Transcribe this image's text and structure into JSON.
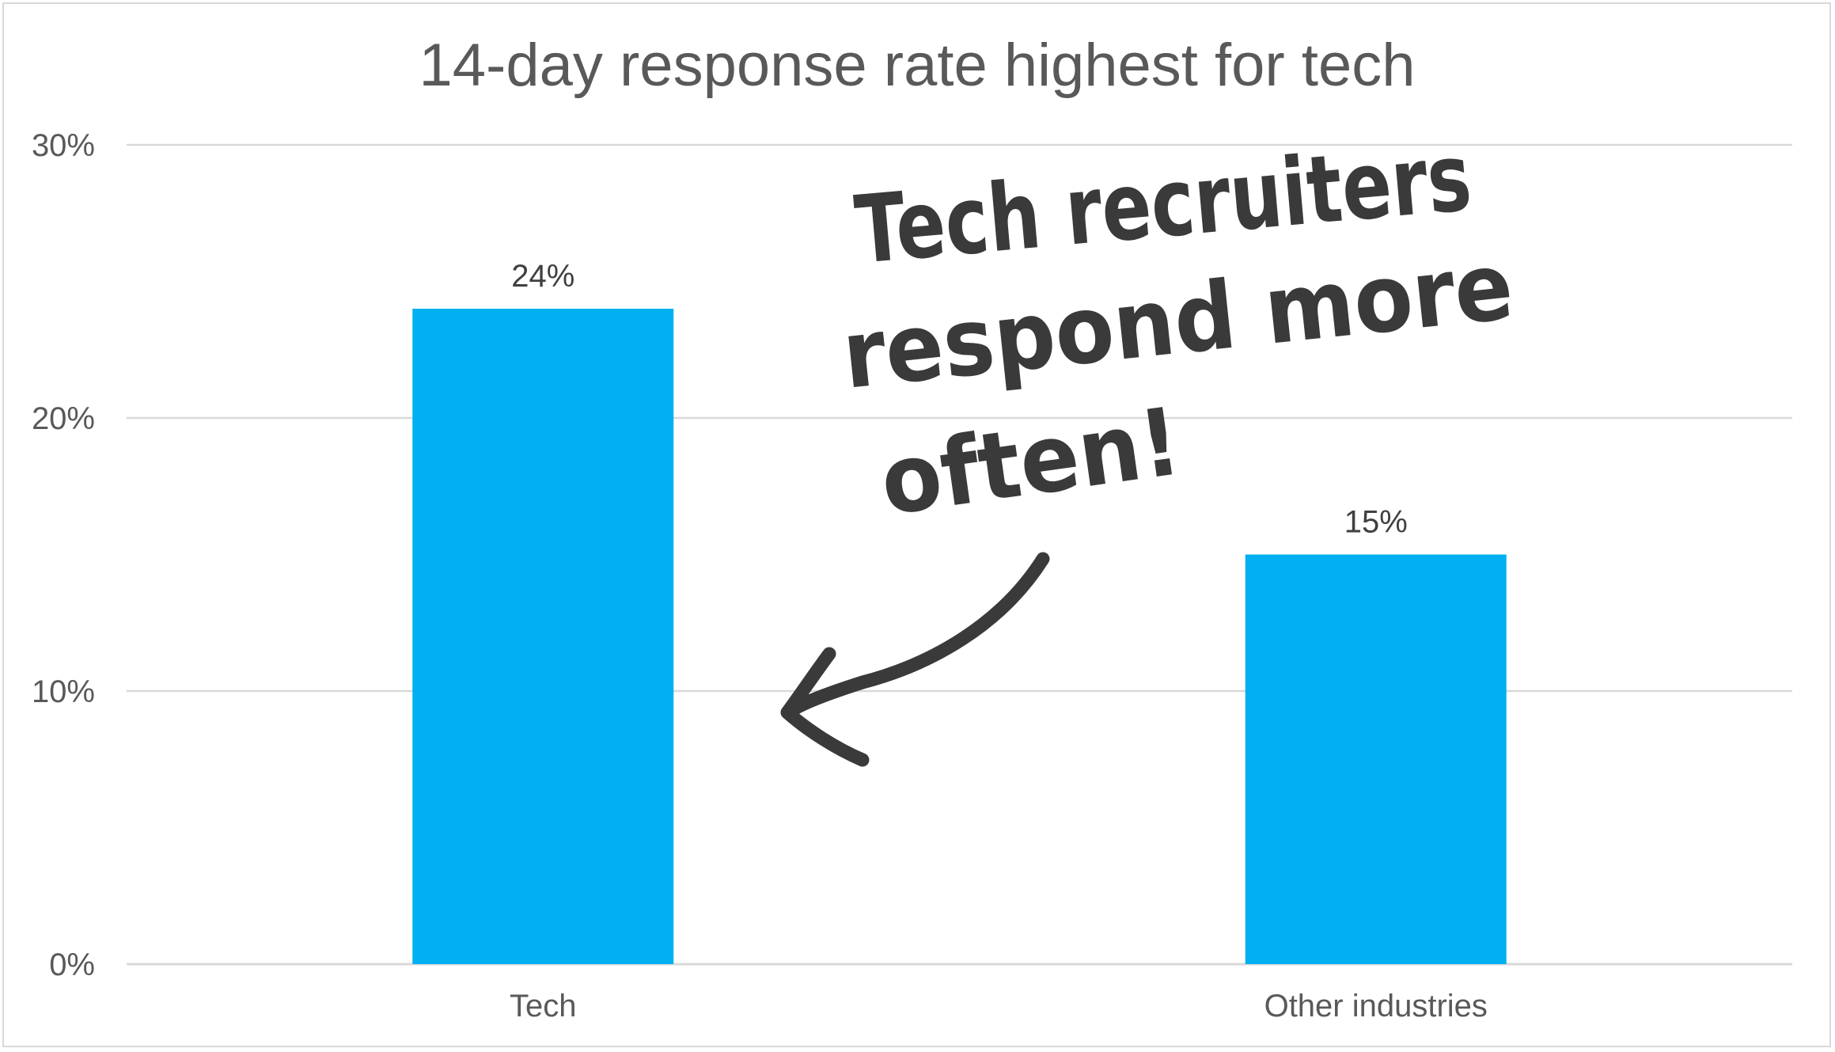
{
  "chart_data": {
    "type": "bar",
    "title": "14-day response rate highest for tech",
    "categories": [
      "Tech",
      "Other industries"
    ],
    "values": [
      0.24,
      0.15
    ],
    "data_labels": [
      "24%",
      "15%"
    ],
    "xlabel": "",
    "ylabel": "",
    "ylim": [
      0,
      0.3
    ],
    "y_ticks": [
      0,
      0.1,
      0.2,
      0.3
    ],
    "y_tick_labels": [
      "0%",
      "10%",
      "20%",
      "30%"
    ],
    "grid": true,
    "legend": "none",
    "bar_color": "#00B0F0",
    "annotation": {
      "lines": [
        "Tech recruiters",
        "respond more",
        "often!"
      ],
      "points_to": "Tech",
      "style": "handwritten",
      "color": "#3a3a3a"
    }
  }
}
